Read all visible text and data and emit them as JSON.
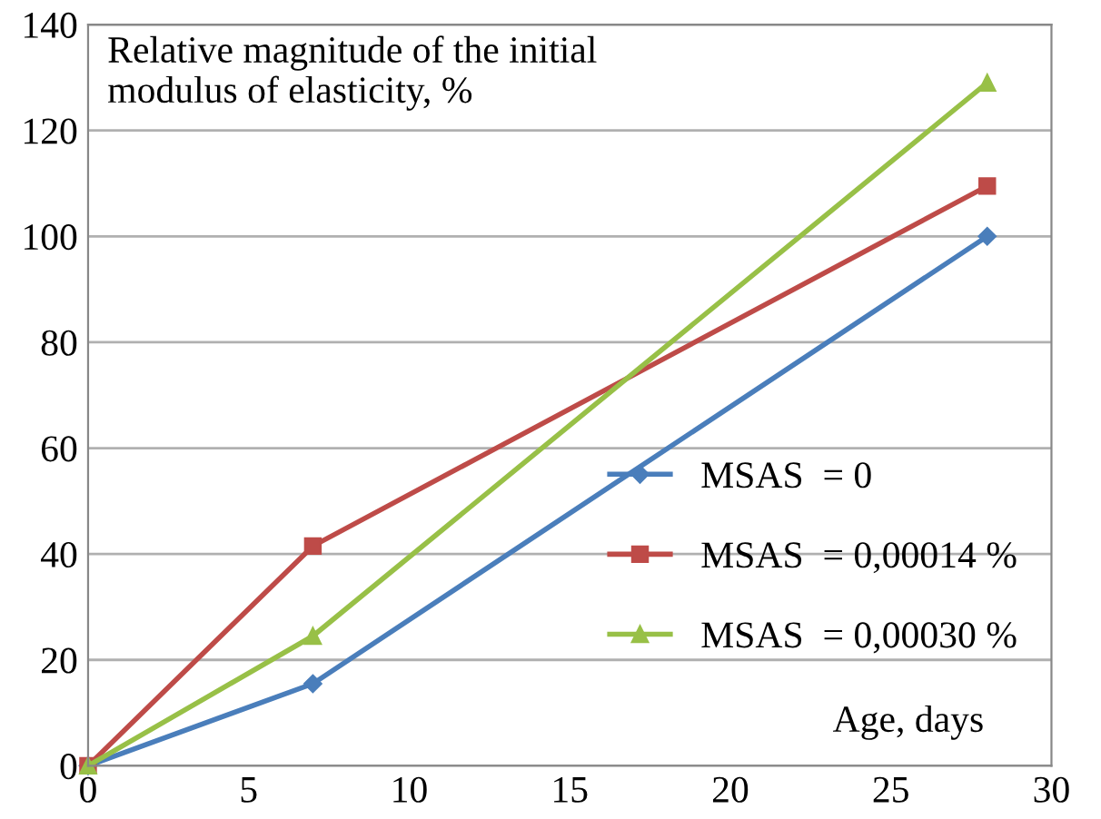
{
  "chart_data": {
    "type": "line",
    "ylabel": "Relative magnitude of the initial\nmodulus of elasticity, %",
    "xlabel": "Age, days",
    "x": [
      0,
      7,
      28
    ],
    "series": [
      {
        "name": "MSAS  = 0",
        "color": "#4a7ebb",
        "values": [
          0,
          15.5,
          100
        ],
        "marker": "diamond"
      },
      {
        "name": "MSAS  = 0,00014 %",
        "color": "#be4b48",
        "values": [
          0,
          41.5,
          109.5
        ],
        "marker": "square"
      },
      {
        "name": "MSAS  = 0,00030 %",
        "color": "#98c047",
        "values": [
          0,
          24.5,
          129
        ],
        "marker": "triangle"
      }
    ],
    "xlim": [
      0,
      30
    ],
    "xticks": [
      0,
      5,
      10,
      15,
      20,
      25,
      30
    ],
    "ylim": [
      0,
      140
    ],
    "yticks": [
      0,
      20,
      40,
      60,
      80,
      100,
      120,
      140
    ],
    "grid": "y",
    "legend": "right",
    "line_style": "solid"
  }
}
